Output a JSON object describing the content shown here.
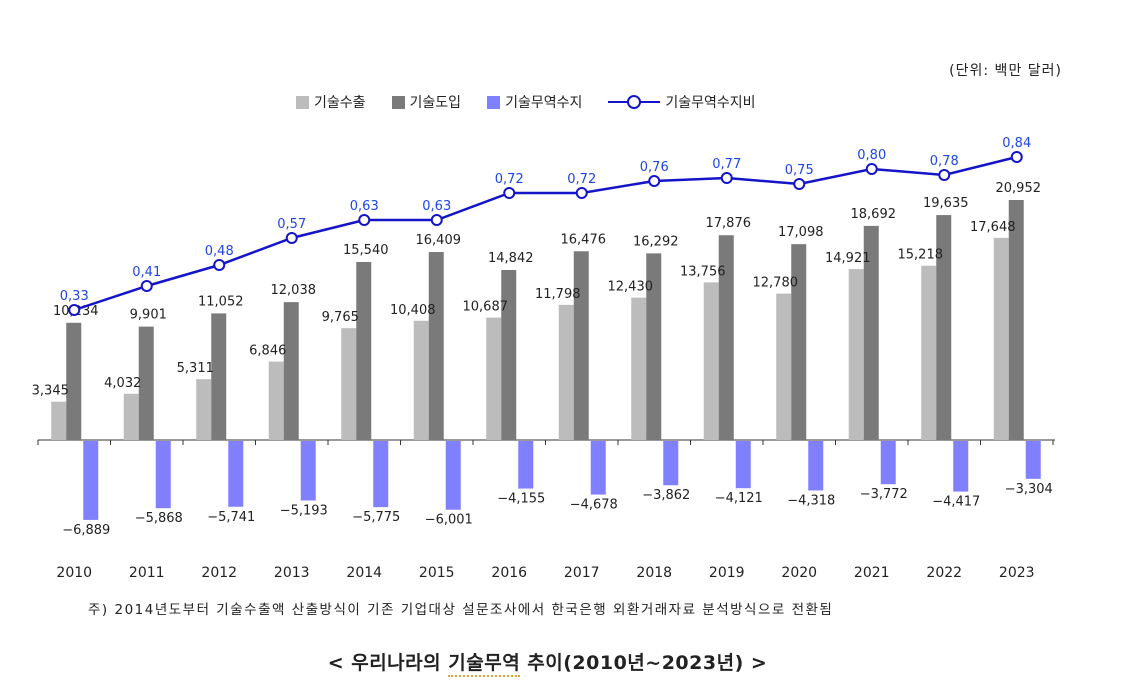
{
  "unit_label": "(단위: 백만 달러)",
  "legend": {
    "export": "기술수출",
    "import": "기술도입",
    "balance": "기술무역수지",
    "ratio": "기술무역수지비"
  },
  "colors": {
    "export": "#bcbcbc",
    "import": "#7a7a7a",
    "balance": "#8080ff",
    "ratio": "#1414c8",
    "ratio_label": "#1e46e6"
  },
  "footnote": "주) 2014년도부터 기술수출액 산출방식이 기존 기업대상 설문조사에서 한국은행 외환거래자료 분석방식으로 전환됨",
  "caption": {
    "prefix": "< 우리나라의 ",
    "highlight": "기술무역",
    "suffix": " 추이(2010년~2023년) >"
  },
  "chart_data": {
    "type": "bar",
    "categories": [
      "2010",
      "2011",
      "2012",
      "2013",
      "2014",
      "2015",
      "2016",
      "2017",
      "2018",
      "2019",
      "2020",
      "2021",
      "2022",
      "2023"
    ],
    "series": [
      {
        "name": "기술수출",
        "type": "bar",
        "values": [
          3345,
          4032,
          5311,
          6846,
          9765,
          10408,
          10687,
          11798,
          12430,
          13756,
          12780,
          14921,
          15218,
          17648
        ],
        "labels": [
          "3,345",
          "4,032",
          "5,311",
          "6,846",
          "9,765",
          "10,408",
          "10,687",
          "11,798",
          "12,430",
          "13,756",
          "12,780",
          "14,921",
          "15,218",
          "17,648"
        ]
      },
      {
        "name": "기술도입",
        "type": "bar",
        "values": [
          10234,
          9901,
          11052,
          12038,
          15540,
          16409,
          14842,
          16476,
          16292,
          17876,
          17098,
          18692,
          19635,
          20952
        ],
        "labels": [
          "10,234",
          "9,901",
          "11,052",
          "12,038",
          "15,540",
          "16,409",
          "14,842",
          "16,476",
          "16,292",
          "17,876",
          "17,098",
          "18,692",
          "19,635",
          "20,952"
        ]
      },
      {
        "name": "기술무역수지",
        "type": "bar",
        "values": [
          -6889,
          -5868,
          -5741,
          -5193,
          -5775,
          -6001,
          -4155,
          -4678,
          -3862,
          -4121,
          -4318,
          -3772,
          -4417,
          -3304
        ],
        "labels": [
          "−6,889",
          "−5,868",
          "−5,741",
          "−5,193",
          "−5,775",
          "−6,001",
          "−4,155",
          "−4,678",
          "−3,862",
          "−4,121",
          "−4,318",
          "−3,772",
          "−4,417",
          "−3,304"
        ]
      },
      {
        "name": "기술무역수지비",
        "type": "line",
        "values": [
          0.33,
          0.41,
          0.48,
          0.57,
          0.63,
          0.63,
          0.72,
          0.72,
          0.76,
          0.77,
          0.75,
          0.8,
          0.78,
          0.84
        ],
        "labels": [
          "0,33",
          "0,41",
          "0,48",
          "0,57",
          "0,63",
          "0,63",
          "0,72",
          "0,72",
          "0,76",
          "0,77",
          "0,75",
          "0,80",
          "0,78",
          "0,84"
        ]
      }
    ],
    "legend_position": "top-center",
    "grid": false
  }
}
